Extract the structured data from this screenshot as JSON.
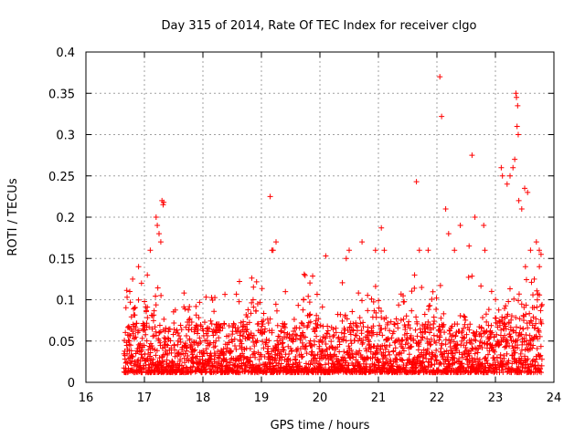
{
  "chart_data": {
    "type": "scatter",
    "title": "Day 315 of 2014, Rate Of TEC Index for receiver clgo",
    "xlabel": "GPS time / hours",
    "ylabel": "ROTI / TECUs",
    "xlim": [
      16,
      24
    ],
    "ylim": [
      0,
      0.4
    ],
    "xticks": [
      16,
      17,
      18,
      19,
      20,
      21,
      22,
      23,
      24
    ],
    "yticks": [
      0,
      0.05,
      0.1,
      0.15,
      0.2,
      0.25,
      0.3,
      0.35,
      0.4
    ],
    "xtick_labels": [
      "16",
      "17",
      "18",
      "19",
      "20",
      "21",
      "22",
      "23",
      "24"
    ],
    "ytick_labels": [
      "0",
      "0.05",
      "0.1",
      "0.15",
      "0.2",
      "0.25",
      "0.3",
      "0.35",
      "0.4"
    ],
    "grid": true,
    "marker": "+",
    "color": "#ff0000",
    "x_range_of_data": [
      16.65,
      23.8
    ],
    "series": [
      {
        "name": "ROTI",
        "points": [
          [
            17.3,
            0.22
          ],
          [
            17.32,
            0.215
          ],
          [
            17.33,
            0.218
          ],
          [
            17.2,
            0.2
          ],
          [
            17.22,
            0.19
          ],
          [
            17.25,
            0.18
          ],
          [
            17.28,
            0.17
          ],
          [
            17.1,
            0.16
          ],
          [
            17.05,
            0.13
          ],
          [
            16.9,
            0.14
          ],
          [
            16.95,
            0.12
          ],
          [
            16.75,
            0.11
          ],
          [
            19.15,
            0.225
          ],
          [
            19.18,
            0.16
          ],
          [
            19.25,
            0.17
          ],
          [
            19.2,
            0.16
          ],
          [
            20.1,
            0.153
          ],
          [
            20.45,
            0.15
          ],
          [
            20.5,
            0.16
          ],
          [
            20.72,
            0.17
          ],
          [
            20.95,
            0.16
          ],
          [
            21.05,
            0.187
          ],
          [
            21.1,
            0.16
          ],
          [
            21.65,
            0.243
          ],
          [
            21.7,
            0.16
          ],
          [
            21.85,
            0.16
          ],
          [
            22.05,
            0.37
          ],
          [
            22.08,
            0.322
          ],
          [
            22.15,
            0.21
          ],
          [
            22.2,
            0.18
          ],
          [
            22.3,
            0.16
          ],
          [
            22.4,
            0.19
          ],
          [
            22.55,
            0.165
          ],
          [
            22.6,
            0.275
          ],
          [
            22.65,
            0.2
          ],
          [
            22.8,
            0.19
          ],
          [
            22.82,
            0.16
          ],
          [
            23.1,
            0.26
          ],
          [
            23.12,
            0.25
          ],
          [
            23.2,
            0.24
          ],
          [
            23.25,
            0.25
          ],
          [
            23.3,
            0.26
          ],
          [
            23.33,
            0.27
          ],
          [
            23.35,
            0.35
          ],
          [
            23.36,
            0.345
          ],
          [
            23.38,
            0.335
          ],
          [
            23.39,
            0.3
          ],
          [
            23.37,
            0.31
          ],
          [
            23.4,
            0.22
          ],
          [
            23.45,
            0.21
          ],
          [
            23.5,
            0.235
          ],
          [
            23.55,
            0.23
          ],
          [
            23.6,
            0.16
          ],
          [
            23.7,
            0.17
          ],
          [
            23.75,
            0.16
          ],
          [
            23.78,
            0.155
          ]
        ]
      }
    ]
  }
}
